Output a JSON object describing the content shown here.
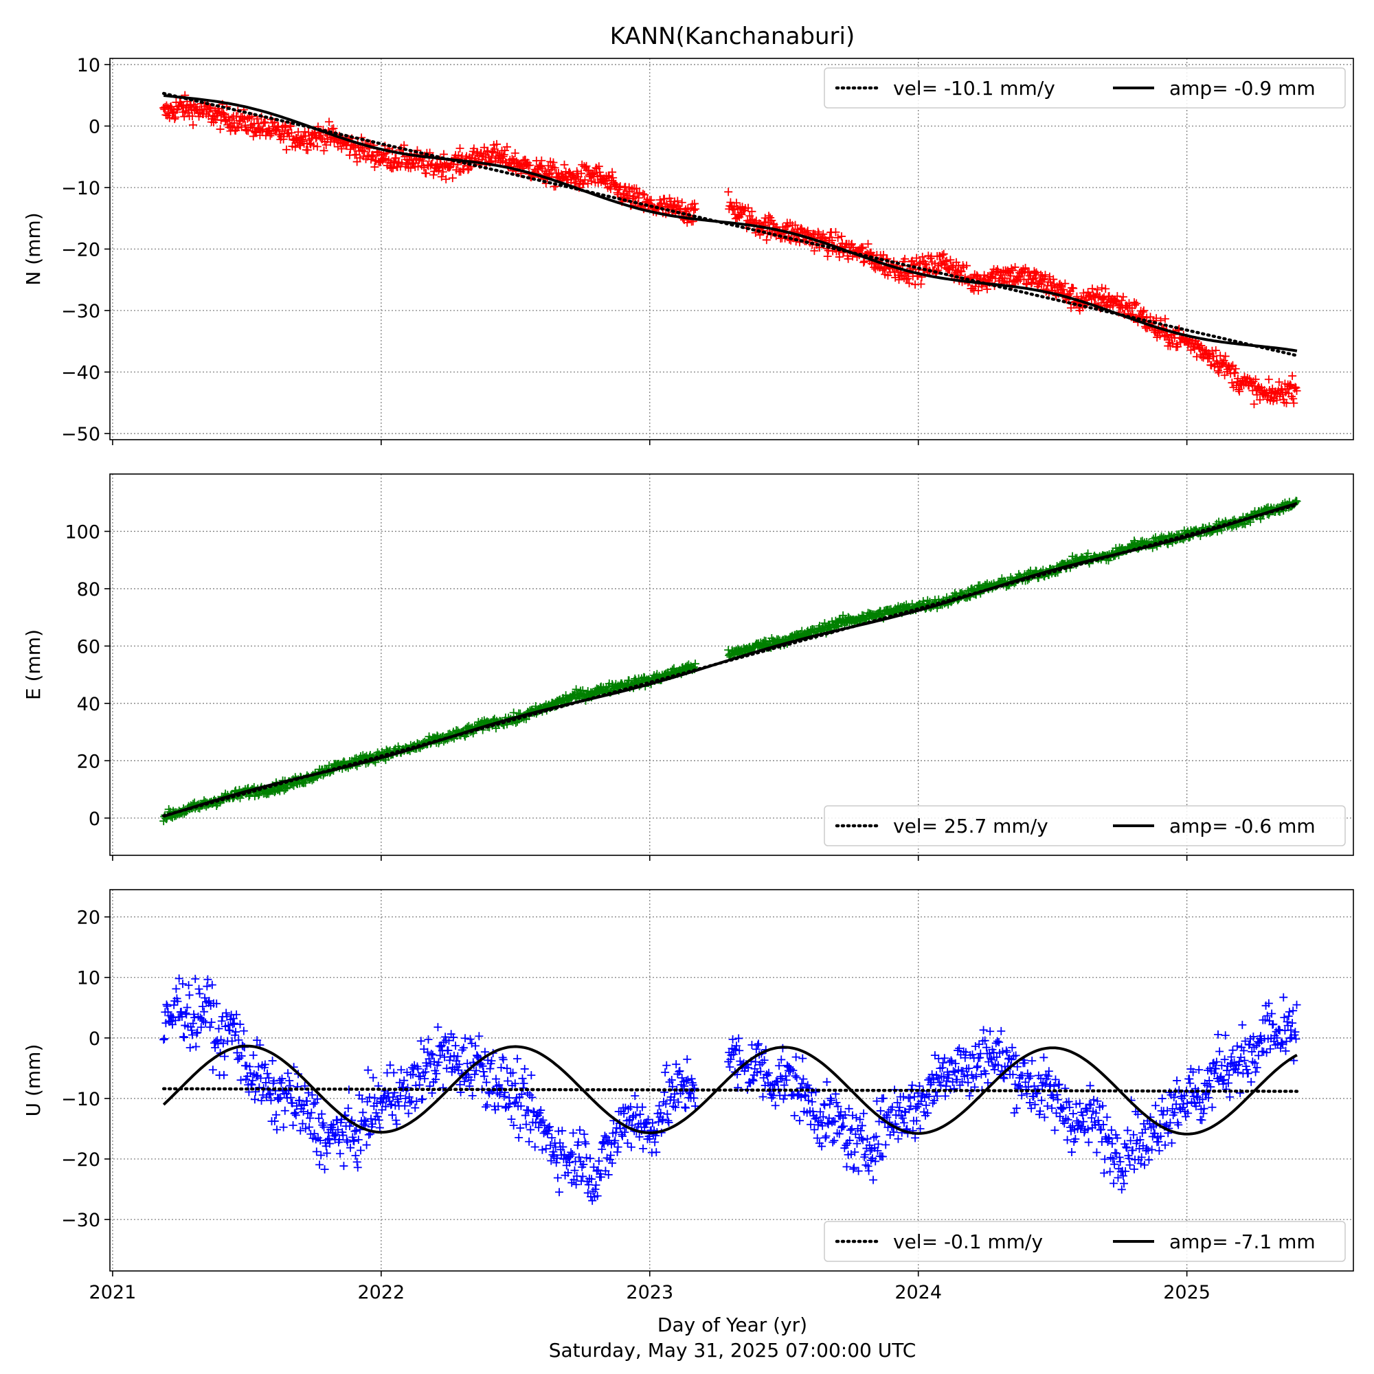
{
  "title": "KANN(Kanchanaburi)",
  "xlabel": "Day of Year (yr)",
  "timestamp": "Saturday, May 31, 2025 07:00:00 UTC",
  "chart_data": [
    {
      "type": "scatter",
      "component": "N",
      "ylabel": "N (mm)",
      "color": "#ff0000",
      "xlim": [
        2020.99,
        2025.62
      ],
      "ylim": [
        -51,
        11
      ],
      "yticks": [
        10,
        0,
        -10,
        -20,
        -30,
        -40,
        -50
      ],
      "ytick_labels": [
        "10",
        "0",
        "−10",
        "−20",
        "−30",
        "−40",
        "−50"
      ],
      "xticks": [
        2021,
        2022,
        2023,
        2024,
        2025
      ],
      "x_range": [
        2021.19,
        2025.41
      ],
      "points": [
        [
          2021.19,
          2.0
        ],
        [
          2021.25,
          3.0
        ],
        [
          2021.32,
          2.5
        ],
        [
          2021.4,
          1.5
        ],
        [
          2021.5,
          0.5
        ],
        [
          2021.6,
          -1.0
        ],
        [
          2021.7,
          -2.0
        ],
        [
          2021.8,
          -1.5
        ],
        [
          2021.9,
          -3.5
        ],
        [
          2022.0,
          -5.0
        ],
        [
          2022.1,
          -5.5
        ],
        [
          2022.2,
          -6.5
        ],
        [
          2022.3,
          -6.0
        ],
        [
          2022.4,
          -4.5
        ],
        [
          2022.5,
          -6.0
        ],
        [
          2022.6,
          -7.5
        ],
        [
          2022.7,
          -8.5
        ],
        [
          2022.8,
          -8.0
        ],
        [
          2022.9,
          -11.0
        ],
        [
          2023.0,
          -13.0
        ],
        [
          2023.08,
          -13.5
        ],
        [
          2023.16,
          -14.0
        ],
        [
          2023.3,
          -13.0
        ],
        [
          2023.4,
          -16.0
        ],
        [
          2023.55,
          -17.5
        ],
        [
          2023.7,
          -19.5
        ],
        [
          2023.8,
          -21.0
        ],
        [
          2023.9,
          -23.0
        ],
        [
          2024.0,
          -23.5
        ],
        [
          2024.1,
          -22.0
        ],
        [
          2024.2,
          -25.5
        ],
        [
          2024.3,
          -24.0
        ],
        [
          2024.4,
          -24.5
        ],
        [
          2024.5,
          -26.0
        ],
        [
          2024.6,
          -28.5
        ],
        [
          2024.7,
          -28.0
        ],
        [
          2024.8,
          -30.0
        ],
        [
          2024.9,
          -33.5
        ],
        [
          2025.0,
          -35.0
        ],
        [
          2025.1,
          -37.5
        ],
        [
          2025.2,
          -41.5
        ],
        [
          2025.3,
          -44.0
        ],
        [
          2025.41,
          -42.5
        ]
      ],
      "velocity": {
        "slope": -10.1,
        "intercept_year": 2021.19,
        "intercept": 5.3
      },
      "seasonal": {
        "amplitude": -0.9,
        "phase_year": 2021.5
      },
      "legend": {
        "position": "top-right",
        "vel_label": "vel= -10.1 mm/y",
        "amp_label": "amp= -0.9 mm"
      }
    },
    {
      "type": "scatter",
      "component": "E",
      "ylabel": "E (mm)",
      "color": "#008000",
      "xlim": [
        2020.99,
        2025.62
      ],
      "ylim": [
        -13,
        120
      ],
      "yticks": [
        100,
        80,
        60,
        40,
        20,
        0
      ],
      "ytick_labels": [
        "100",
        "80",
        "60",
        "40",
        "20",
        "0"
      ],
      "xticks": [
        2021,
        2022,
        2023,
        2024,
        2025
      ],
      "x_range": [
        2021.19,
        2025.41
      ],
      "points": [
        [
          2021.19,
          0.5
        ],
        [
          2021.3,
          3.5
        ],
        [
          2021.4,
          6.5
        ],
        [
          2021.5,
          9.0
        ],
        [
          2021.6,
          10.5
        ],
        [
          2021.7,
          13.0
        ],
        [
          2021.8,
          17.0
        ],
        [
          2021.9,
          19.5
        ],
        [
          2022.0,
          22.0
        ],
        [
          2022.1,
          24.0
        ],
        [
          2022.2,
          27.0
        ],
        [
          2022.3,
          29.5
        ],
        [
          2022.4,
          33.0
        ],
        [
          2022.5,
          34.5
        ],
        [
          2022.6,
          38.0
        ],
        [
          2022.7,
          42.0
        ],
        [
          2022.8,
          44.0
        ],
        [
          2022.9,
          46.5
        ],
        [
          2023.0,
          48.0
        ],
        [
          2023.1,
          51.0
        ],
        [
          2023.3,
          57.0
        ],
        [
          2023.4,
          60.0
        ],
        [
          2023.5,
          62.0
        ],
        [
          2023.6,
          64.5
        ],
        [
          2023.7,
          68.0
        ],
        [
          2023.8,
          70.0
        ],
        [
          2023.9,
          72.0
        ],
        [
          2024.0,
          74.0
        ],
        [
          2024.1,
          75.5
        ],
        [
          2024.2,
          79.0
        ],
        [
          2024.3,
          81.5
        ],
        [
          2024.4,
          84.0
        ],
        [
          2024.5,
          86.5
        ],
        [
          2024.6,
          90.0
        ],
        [
          2024.7,
          91.0
        ],
        [
          2024.8,
          95.0
        ],
        [
          2024.9,
          96.5
        ],
        [
          2025.0,
          99.0
        ],
        [
          2025.1,
          101.0
        ],
        [
          2025.2,
          103.5
        ],
        [
          2025.3,
          107.0
        ],
        [
          2025.41,
          110.0
        ]
      ],
      "velocity": {
        "slope": 25.7,
        "intercept_year": 2021.19,
        "intercept": 0.8
      },
      "seasonal": {
        "amplitude": -0.6,
        "phase_year": 2021.5
      },
      "legend": {
        "position": "bottom-right",
        "vel_label": "vel= 25.7 mm/y",
        "amp_label": "amp= -0.6 mm"
      }
    },
    {
      "type": "scatter",
      "component": "U",
      "ylabel": "U (mm)",
      "color": "#0000ff",
      "xlim": [
        2020.99,
        2025.62
      ],
      "ylim": [
        -38.5,
        24.5
      ],
      "yticks": [
        20,
        10,
        0,
        -10,
        -20,
        -30
      ],
      "ytick_labels": [
        "20",
        "10",
        "0",
        "−10",
        "−20",
        "−30"
      ],
      "xticks": [
        2021,
        2022,
        2023,
        2024,
        2025
      ],
      "xtick_labels": [
        "2021",
        "2022",
        "2023",
        "2024",
        "2025"
      ],
      "x_range": [
        2021.19,
        2025.41
      ],
      "points": [
        [
          2021.19,
          1.0
        ],
        [
          2021.25,
          6.0
        ],
        [
          2021.3,
          3.0
        ],
        [
          2021.35,
          5.5
        ],
        [
          2021.4,
          -1.0
        ],
        [
          2021.45,
          2.0
        ],
        [
          2021.5,
          -5.0
        ],
        [
          2021.55,
          -6.5
        ],
        [
          2021.6,
          -10.5
        ],
        [
          2021.65,
          -9.0
        ],
        [
          2021.7,
          -12.0
        ],
        [
          2021.75,
          -13.5
        ],
        [
          2021.8,
          -17.5
        ],
        [
          2021.85,
          -15.0
        ],
        [
          2021.9,
          -16.5
        ],
        [
          2021.95,
          -13.0
        ],
        [
          2022.0,
          -11.0
        ],
        [
          2022.05,
          -8.5
        ],
        [
          2022.1,
          -9.5
        ],
        [
          2022.15,
          -5.5
        ],
        [
          2022.2,
          -4.0
        ],
        [
          2022.25,
          -2.5
        ],
        [
          2022.3,
          -5.0
        ],
        [
          2022.35,
          -3.5
        ],
        [
          2022.4,
          -6.0
        ],
        [
          2022.45,
          -8.0
        ],
        [
          2022.5,
          -10.0
        ],
        [
          2022.55,
          -12.5
        ],
        [
          2022.6,
          -15.0
        ],
        [
          2022.65,
          -18.0
        ],
        [
          2022.7,
          -20.5
        ],
        [
          2022.75,
          -19.0
        ],
        [
          2022.8,
          -23.5
        ],
        [
          2022.85,
          -18.5
        ],
        [
          2022.9,
          -14.0
        ],
        [
          2022.95,
          -12.5
        ],
        [
          2023.0,
          -16.5
        ],
        [
          2023.05,
          -11.0
        ],
        [
          2023.1,
          -9.0
        ],
        [
          2023.16,
          -7.5
        ],
        [
          2023.3,
          -3.0
        ],
        [
          2023.35,
          -5.5
        ],
        [
          2023.4,
          -4.0
        ],
        [
          2023.45,
          -7.0
        ],
        [
          2023.5,
          -6.5
        ],
        [
          2023.55,
          -8.0
        ],
        [
          2023.6,
          -11.0
        ],
        [
          2023.65,
          -13.5
        ],
        [
          2023.7,
          -14.0
        ],
        [
          2023.75,
          -17.0
        ],
        [
          2023.8,
          -18.5
        ],
        [
          2023.85,
          -16.0
        ],
        [
          2023.9,
          -13.0
        ],
        [
          2023.95,
          -12.0
        ],
        [
          2024.0,
          -11.5
        ],
        [
          2024.05,
          -8.0
        ],
        [
          2024.1,
          -5.0
        ],
        [
          2024.15,
          -4.5
        ],
        [
          2024.2,
          -6.0
        ],
        [
          2024.25,
          -2.0
        ],
        [
          2024.3,
          -3.5
        ],
        [
          2024.35,
          -5.0
        ],
        [
          2024.4,
          -7.0
        ],
        [
          2024.45,
          -8.5
        ],
        [
          2024.5,
          -10.0
        ],
        [
          2024.55,
          -12.0
        ],
        [
          2024.6,
          -14.5
        ],
        [
          2024.65,
          -13.0
        ],
        [
          2024.7,
          -17.0
        ],
        [
          2024.75,
          -19.5
        ],
        [
          2024.8,
          -16.0
        ],
        [
          2024.85,
          -18.0
        ],
        [
          2024.9,
          -13.5
        ],
        [
          2024.95,
          -11.0
        ],
        [
          2025.0,
          -9.0
        ],
        [
          2025.05,
          -10.5
        ],
        [
          2025.1,
          -6.0
        ],
        [
          2025.15,
          -4.5
        ],
        [
          2025.2,
          -3.0
        ],
        [
          2025.25,
          -4.0
        ],
        [
          2025.3,
          2.0
        ],
        [
          2025.35,
          -0.5
        ],
        [
          2025.41,
          1.0
        ]
      ],
      "velocity": {
        "slope": -0.1,
        "intercept_year": 2021.19,
        "intercept": -8.4
      },
      "seasonal": {
        "amplitude": -7.1,
        "phase_year": 2021.5
      },
      "legend": {
        "position": "bottom-right",
        "vel_label": "vel= -0.1 mm/y",
        "amp_label": "amp= -7.1 mm"
      }
    }
  ]
}
